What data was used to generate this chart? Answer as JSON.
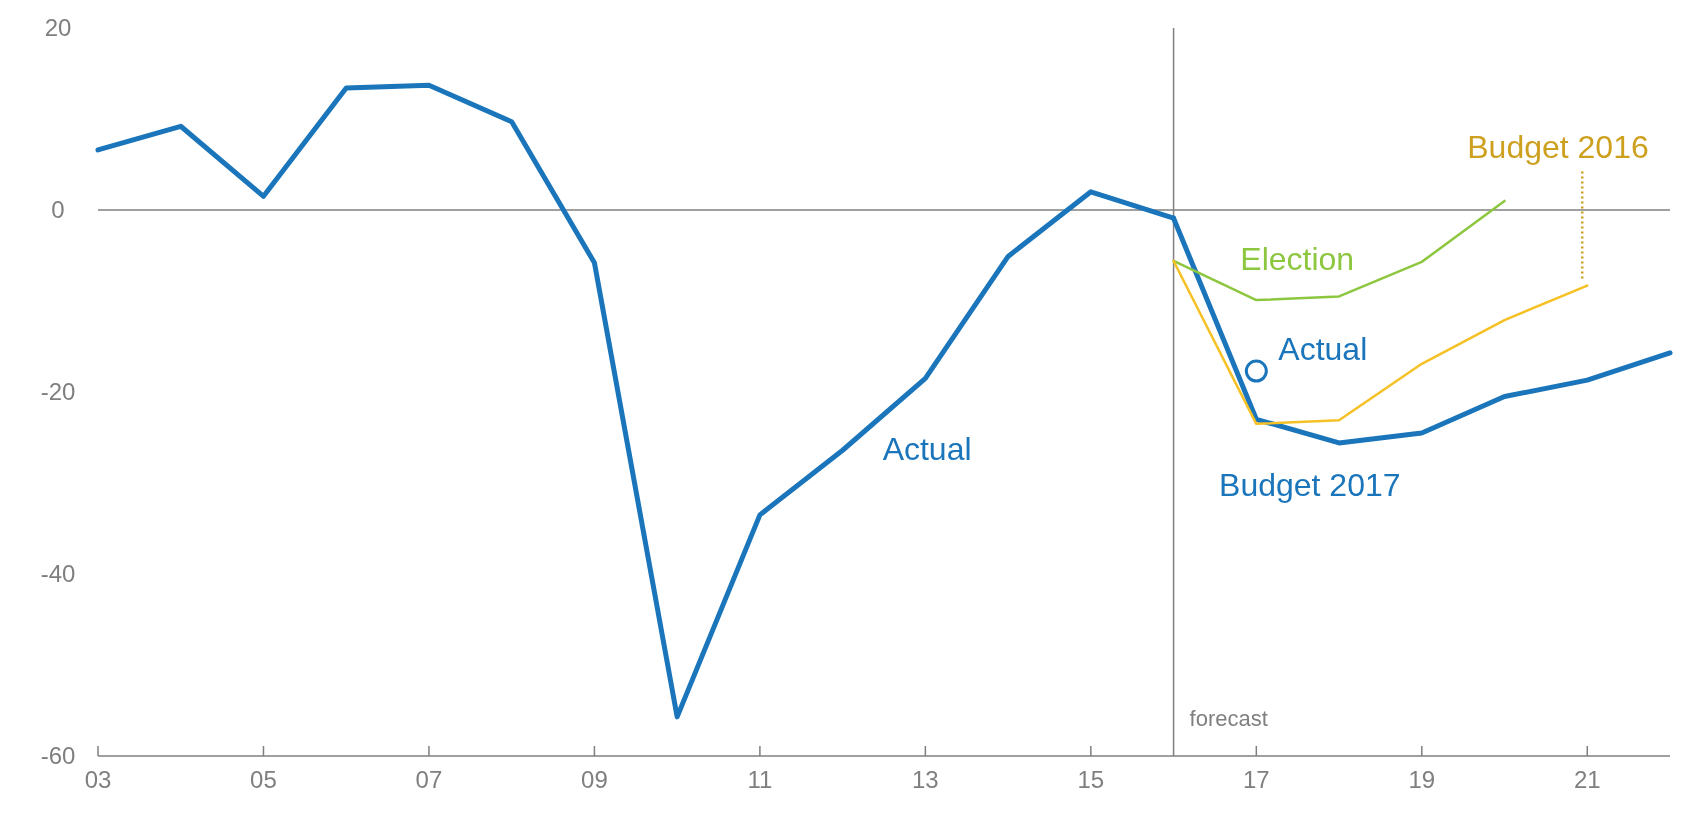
{
  "chart_data": {
    "type": "line",
    "xlim": [
      2003,
      2022
    ],
    "ylim": [
      -60,
      20
    ],
    "xticks": [
      {
        "value": 2003,
        "label": "03"
      },
      {
        "value": 2005,
        "label": "05"
      },
      {
        "value": 2007,
        "label": "07"
      },
      {
        "value": 2009,
        "label": "09"
      },
      {
        "value": 2011,
        "label": "11"
      },
      {
        "value": 2013,
        "label": "13"
      },
      {
        "value": 2015,
        "label": "15"
      },
      {
        "value": 2017,
        "label": "17"
      },
      {
        "value": 2019,
        "label": "19"
      },
      {
        "value": 2021,
        "label": "21"
      }
    ],
    "yticks": [
      -60,
      -40,
      -20,
      0,
      20
    ],
    "grid": false,
    "marker": "none",
    "line_style": "solid",
    "ref_lines": [
      {
        "axis": "x",
        "value": 2016,
        "label": "forecast",
        "color": "#808080"
      },
      {
        "axis": "y",
        "value": 0,
        "label": null,
        "color": "#808080"
      }
    ],
    "series": [
      {
        "name": "Actual",
        "color": "#1a75bb",
        "x": [
          2003,
          2004,
          2005,
          2006,
          2007,
          2008,
          2009,
          2010,
          2011,
          2012,
          2013,
          2014,
          2015,
          2016
        ],
        "values": [
          6.6,
          9.2,
          1.5,
          13.4,
          13.7,
          9.7,
          -5.8,
          -55.7,
          -33.5,
          -26.4,
          -18.5,
          -5.1,
          2.0,
          -0.9
        ]
      },
      {
        "name": "Budget 2017",
        "color": "#1a75bb",
        "x": [
          2016,
          2017,
          2018,
          2019,
          2020,
          2021,
          2022
        ],
        "values": [
          -0.9,
          -23,
          -25.6,
          -24.5,
          -20.5,
          -18.7,
          -15.7
        ]
      },
      {
        "name": "Election",
        "color": "#8dc63f",
        "x": [
          2016,
          2017,
          2018,
          2019,
          2020
        ],
        "values": [
          -5.6,
          -9.9,
          -9.5,
          -5.7,
          1.0
        ]
      },
      {
        "name": "Budget 2016",
        "color": "#f5c125",
        "x": [
          2016,
          2017,
          2018,
          2019,
          2020,
          2021
        ],
        "values": [
          -5.6,
          -23.5,
          -23.1,
          -16.9,
          -12.1,
          -8.3
        ]
      },
      {
        "name": "Actual",
        "type": "scatter",
        "marker": "circle",
        "color": "#1a75bb",
        "x": [
          2017
        ],
        "values": [
          -17.7
        ]
      }
    ]
  }
}
